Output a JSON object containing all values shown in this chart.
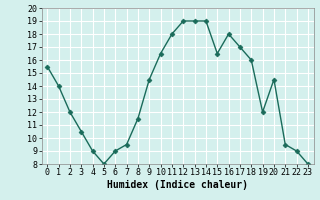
{
  "x": [
    0,
    1,
    2,
    3,
    4,
    5,
    6,
    7,
    8,
    9,
    10,
    11,
    12,
    13,
    14,
    15,
    16,
    17,
    18,
    19,
    20,
    21,
    22,
    23
  ],
  "y": [
    15.5,
    14,
    12,
    10.5,
    9,
    8,
    9,
    9.5,
    11.5,
    14.5,
    16.5,
    18,
    19,
    19,
    19,
    16.5,
    18,
    17,
    16,
    12,
    14.5,
    9.5,
    9,
    8
  ],
  "line_color": "#1a6b5a",
  "marker": "D",
  "marker_size": 2.5,
  "bg_color": "#d4f0ed",
  "grid_color": "#ffffff",
  "xlabel": "Humidex (Indice chaleur)",
  "xlabel_fontsize": 7,
  "tick_fontsize": 6,
  "xlim": [
    -0.5,
    23.5
  ],
  "ylim": [
    8,
    20
  ],
  "yticks": [
    8,
    9,
    10,
    11,
    12,
    13,
    14,
    15,
    16,
    17,
    18,
    19,
    20
  ],
  "xticks": [
    0,
    1,
    2,
    3,
    4,
    5,
    6,
    7,
    8,
    9,
    10,
    11,
    12,
    13,
    14,
    15,
    16,
    17,
    18,
    19,
    20,
    21,
    22,
    23
  ]
}
